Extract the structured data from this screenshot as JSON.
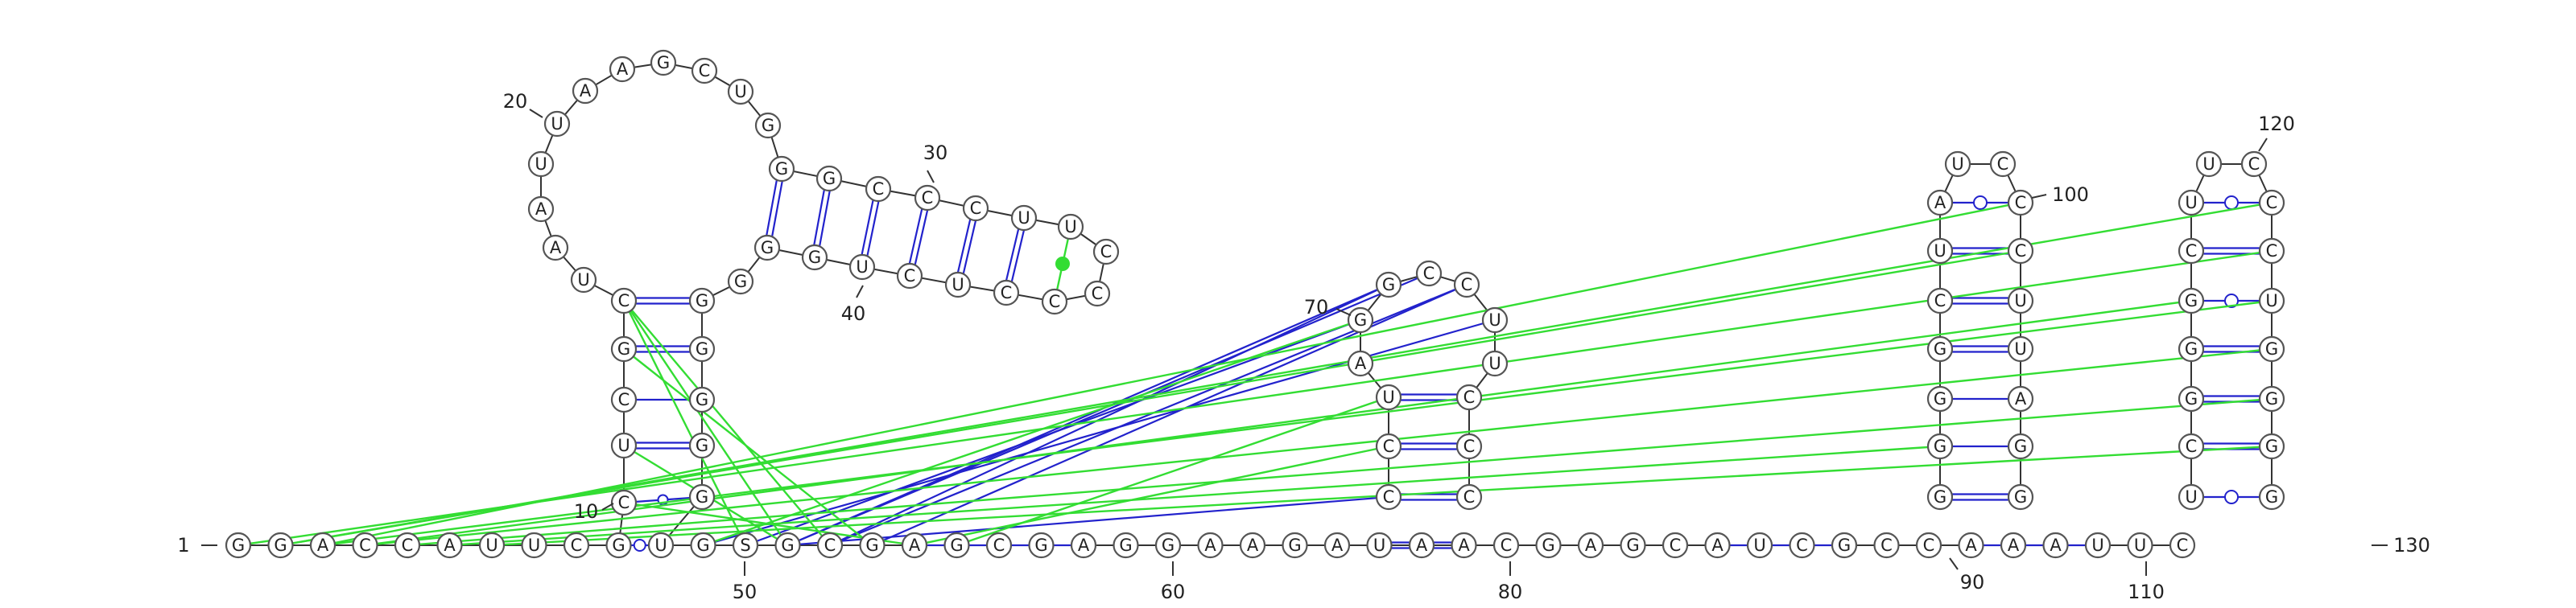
{
  "sequence": "GGACCAUUCGUGSGCGAGCGAGGAAGAUAACGAGCAUCGCCAAAUUC",
  "hairpin1_sequence": "CUCGCUAAUUAAGCUGGGCCCUUCCCCUCUGGG",
  "hairpin2_sequence": "CCUAGGCCUUCCCCUGCU",
  "hairpin3_sequence": "GGGGCUAUCCCUUAG",
  "hairpin4_sequence": "UCGGGCUUCCCUGGG",
  "position_labels": [
    {
      "text": "1",
      "dir": "left"
    },
    {
      "text": "10",
      "dir": "left"
    },
    {
      "text": "20",
      "dir": "left"
    },
    {
      "text": "30",
      "dir": "up"
    },
    {
      "text": "40",
      "dir": "down"
    },
    {
      "text": "50",
      "dir": "down"
    },
    {
      "text": "60",
      "dir": "down"
    },
    {
      "text": "70",
      "dir": "left"
    },
    {
      "text": "80",
      "dir": "down"
    },
    {
      "text": "90",
      "dir": "down"
    },
    {
      "text": "100",
      "dir": "right"
    },
    {
      "text": "110",
      "dir": "down"
    },
    {
      "text": "120",
      "dir": "up"
    },
    {
      "text": "130",
      "dir": "right"
    }
  ],
  "colors": {
    "backbone": "#333333",
    "canonical_pair": "#2222cc",
    "pseudoknot": "#33dd33",
    "nucleotide_fill": "#ffffff",
    "nucleotide_stroke": "#555555"
  }
}
